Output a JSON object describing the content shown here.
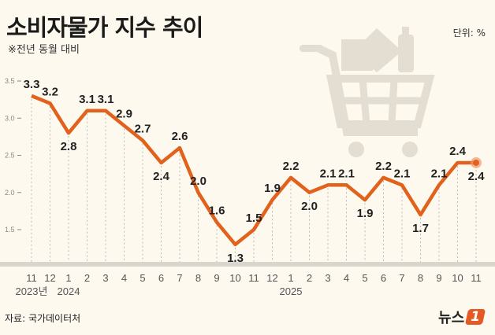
{
  "header": {
    "title": "소비자물가 지수 추이",
    "subtitle": "※전년 동월 대비",
    "unit": "단위: %"
  },
  "footer": {
    "source": "자료: 국가데이터처",
    "logo_text": "뉴스",
    "logo_mark": "1"
  },
  "colors": {
    "line": "#e0621c",
    "background": "#fdf9ef",
    "cart": "#e3ddd2"
  },
  "icon": "shopping-cart-icon",
  "chart_data": {
    "type": "line",
    "title": "소비자물가 지수 추이",
    "subtitle": "※전년 동월 대비",
    "ylabel": "단위: %",
    "categories": [
      "11",
      "12",
      "1",
      "2",
      "3",
      "4",
      "5",
      "6",
      "7",
      "8",
      "9",
      "10",
      "11",
      "12",
      "1",
      "2",
      "3",
      "4",
      "5",
      "6",
      "7",
      "8",
      "9",
      "10",
      "11"
    ],
    "year_labels": [
      {
        "index": 0,
        "label": "2023년"
      },
      {
        "index": 2,
        "label": "2024"
      },
      {
        "index": 14,
        "label": "2025"
      }
    ],
    "values": [
      3.3,
      3.2,
      2.8,
      3.1,
      3.1,
      2.9,
      2.7,
      2.4,
      2.6,
      2.0,
      1.6,
      1.3,
      1.5,
      1.9,
      2.2,
      2.0,
      2.1,
      2.1,
      1.9,
      2.2,
      2.1,
      1.7,
      2.1,
      2.4,
      2.4
    ],
    "yticks": [
      "1.5",
      "2.0",
      "2.5",
      "3.0",
      "3.5"
    ],
    "ylim": [
      1.5,
      3.5
    ],
    "grid": false,
    "highlight_last": true
  }
}
